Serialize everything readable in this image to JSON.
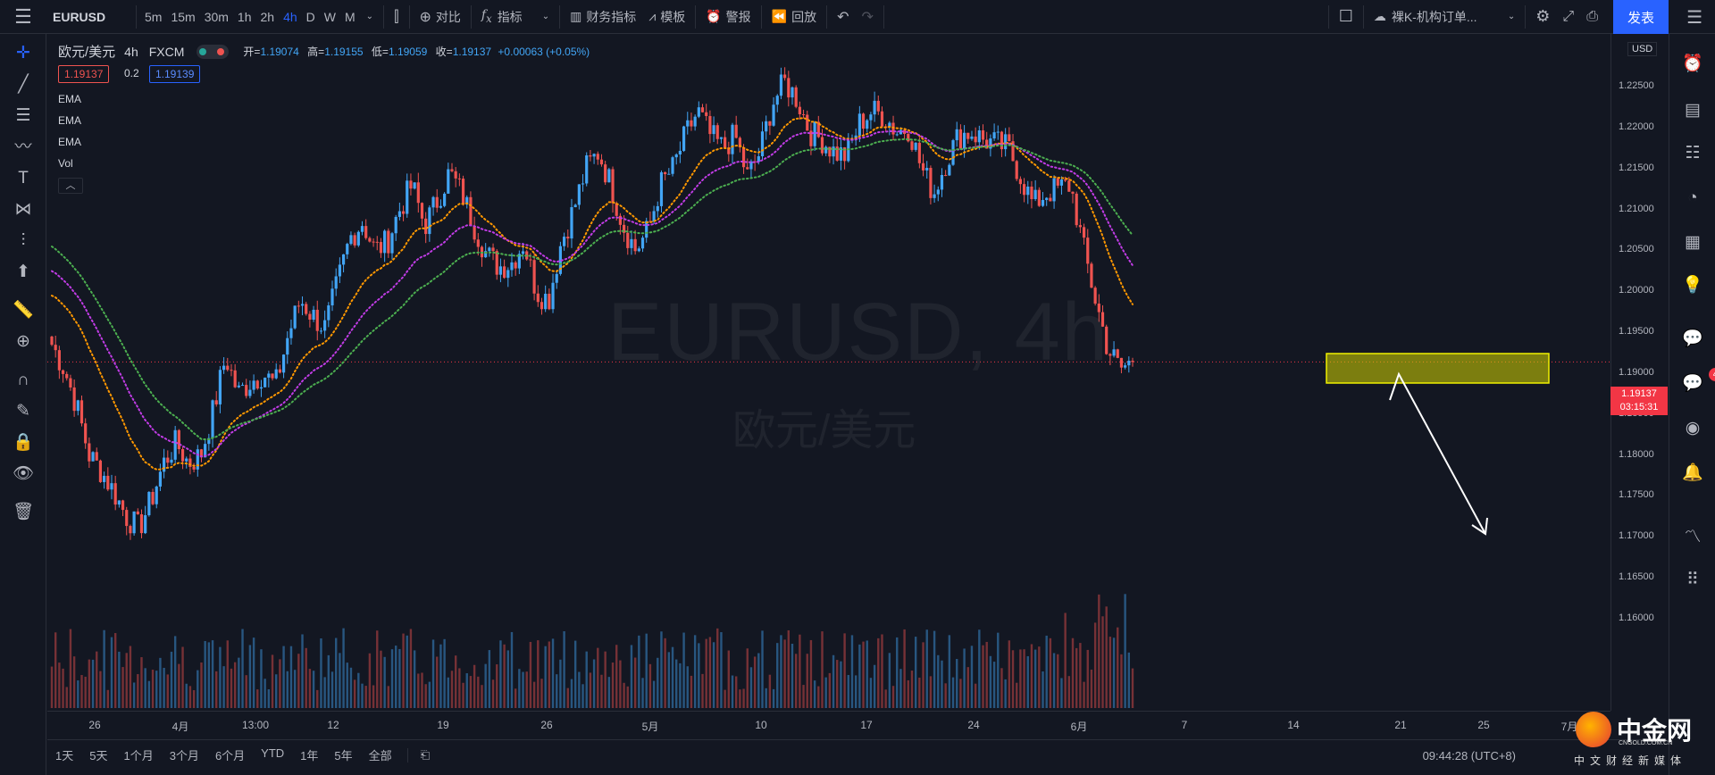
{
  "toolbar": {
    "symbol": "EURUSD",
    "timeframes": [
      "5m",
      "15m",
      "30m",
      "1h",
      "2h",
      "4h",
      "D",
      "W",
      "M"
    ],
    "active_timeframe": "4h",
    "compare": "对比",
    "indicators": "指标",
    "financials": "财务指标",
    "templates": "模板",
    "alerts": "警报",
    "replay": "回放",
    "layout_name": "裸K-机构订单...",
    "publish": "发表"
  },
  "legend": {
    "symbol_name": "欧元/美元",
    "interval": "4h",
    "exchange": "FXCM",
    "open_label": "开=",
    "open": "1.19074",
    "high_label": "高=",
    "high": "1.19155",
    "low_label": "低=",
    "low": "1.19059",
    "close_label": "收=",
    "close": "1.19137",
    "change": "+0.00063 (+0.05%)",
    "sell": "1.19137",
    "spread": "0.2",
    "buy": "1.19139",
    "indicators": [
      "EMA",
      "EMA",
      "EMA",
      "Vol"
    ],
    "collapse": "^"
  },
  "watermark": {
    "main": "EURUSD, 4h",
    "sub": "欧元/美元"
  },
  "price_scale": {
    "currency": "USD",
    "labels": [
      "1.22500",
      "1.22000",
      "1.21500",
      "1.21000",
      "1.20500",
      "1.20000",
      "1.19500",
      "1.19000",
      "1.18500",
      "1.18000",
      "1.17500",
      "1.17000",
      "1.16500",
      "1.16000"
    ],
    "current_price": "1.19137",
    "countdown": "03:15:31"
  },
  "time_scale": {
    "labels": [
      "26",
      "4月",
      "13:00",
      "12",
      "19",
      "26",
      "5月",
      "10",
      "17",
      "24",
      "6月",
      "7",
      "14",
      "21",
      "25",
      "7月"
    ]
  },
  "bottom": {
    "ranges": [
      "1天",
      "5天",
      "1个月",
      "3个月",
      "6个月",
      "YTD",
      "1年",
      "5年",
      "全部"
    ],
    "clock": "09:44:28 (UTC+8)"
  },
  "right_badge": "4",
  "logo": {
    "name": "中金网",
    "site": "CNGOLD.COM.CN",
    "tagline": "中文财经新媒体"
  },
  "colors": {
    "up": "#42a5f5",
    "down": "#ef5350",
    "ema_fast": "#ff9800",
    "ema_mid": "#c13ce6",
    "ema_slow": "#4caf50",
    "zone": "#d4d400",
    "accent": "#2962ff"
  },
  "chart_data": {
    "type": "candlestick",
    "symbol": "EURUSD",
    "interval": "4h",
    "ylim": [
      1.1575,
      1.2275
    ],
    "approx_closes": [
      1.1935,
      1.1905,
      1.186,
      1.18,
      1.178,
      1.1755,
      1.1725,
      1.171,
      1.1745,
      1.179,
      1.1815,
      1.179,
      1.18,
      1.1855,
      1.192,
      1.1875,
      1.189,
      1.19,
      1.1885,
      1.1945,
      1.199,
      1.197,
      1.1955,
      1.201,
      1.2065,
      1.2085,
      1.205,
      1.206,
      1.21,
      1.213,
      1.208,
      1.211,
      1.2145,
      1.212,
      1.208,
      1.2045,
      1.203,
      1.2035,
      1.206,
      1.2,
      1.199,
      1.206,
      1.21,
      1.215,
      1.217,
      1.213,
      1.208,
      1.205,
      1.2075,
      1.213,
      1.215,
      1.219,
      1.222,
      1.219,
      1.2175,
      1.219,
      1.214,
      1.217,
      1.223,
      1.2255,
      1.2235,
      1.2195,
      1.2185,
      1.217,
      1.2165,
      1.2205,
      1.222,
      1.2215,
      1.2195,
      1.22,
      1.215,
      1.212,
      1.216,
      1.219,
      1.2195,
      1.2185,
      1.218,
      1.2175,
      1.214,
      1.2105,
      1.212,
      1.2125,
      1.213,
      1.2055,
      1.199,
      1.193,
      1.1905,
      1.1914
    ]
  }
}
